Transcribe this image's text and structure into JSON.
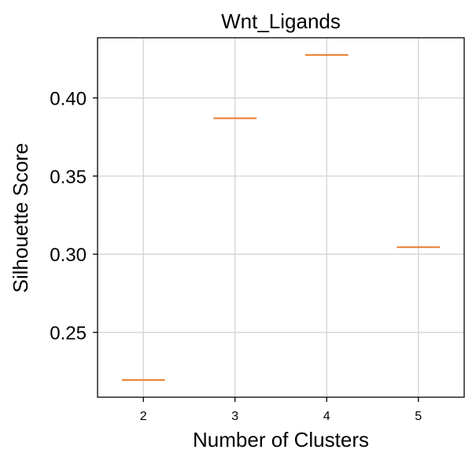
{
  "chart_data": {
    "type": "box",
    "title": "Wnt_Ligands",
    "xlabel": "Number of Clusters",
    "ylabel": "Silhouette Score",
    "categories": [
      "2",
      "3",
      "4",
      "5"
    ],
    "values": [
      0.2195,
      0.387,
      0.4275,
      0.3045
    ],
    "x_ticks": [
      "2",
      "3",
      "4",
      "5"
    ],
    "y_ticks": [
      "0.25",
      "0.30",
      "0.35",
      "0.40"
    ],
    "y_tick_values": [
      0.25,
      0.3,
      0.35,
      0.4
    ],
    "ylim": [
      0.2085,
      0.4385
    ],
    "grid": true,
    "legend": "none",
    "colors": {
      "median": "#e87d2b",
      "grid": "#d3d3d3",
      "axis": "#000000"
    }
  }
}
